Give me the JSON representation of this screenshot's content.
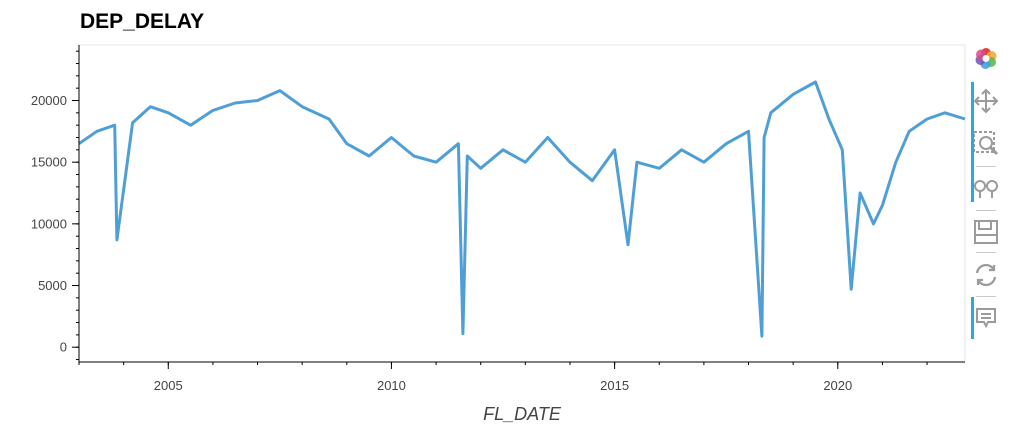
{
  "chart_data": {
    "type": "line",
    "title": "DEP_DELAY",
    "xlabel": "FL_DATE",
    "ylabel": "",
    "xlim": [
      2003.0,
      2022.85
    ],
    "ylim": [
      -1200,
      24500
    ],
    "xticks": [
      2005,
      2010,
      2015,
      2020
    ],
    "yticks": [
      0,
      5000,
      10000,
      15000,
      20000
    ],
    "line_color": "#4f9fd6",
    "grid": false,
    "series": [
      {
        "values_note": "",
        "x": [
          2003.0,
          2003.4,
          2003.8,
          2003.85,
          2004.2,
          2004.6,
          2005.0,
          2005.5,
          2006.0,
          2006.5,
          2007.0,
          2007.5,
          2008.0,
          2008.6,
          2009.0,
          2009.5,
          2010.0,
          2010.5,
          2011.0,
          2011.5,
          2011.6,
          2011.7,
          2012.0,
          2012.5,
          2013.0,
          2013.5,
          2014.0,
          2014.5,
          2015.0,
          2015.3,
          2015.5,
          2016.0,
          2016.5,
          2017.0,
          2017.5,
          2018.0,
          2018.3,
          2018.35,
          2018.5,
          2019.0,
          2019.5,
          2019.8,
          2020.1,
          2020.3,
          2020.5,
          2020.8,
          2021.0,
          2021.3,
          2021.6,
          2022.0,
          2022.4,
          2022.85
        ],
        "y": [
          16500,
          17500,
          18000,
          8700,
          18200,
          19500,
          19000,
          18000,
          19200,
          19800,
          20000,
          20800,
          19500,
          18500,
          16500,
          15500,
          17000,
          15500,
          15000,
          16500,
          1100,
          15500,
          14500,
          16000,
          15000,
          17000,
          15000,
          13500,
          16000,
          8300,
          15000,
          14500,
          16000,
          15000,
          16500,
          17500,
          900,
          17000,
          19000,
          20500,
          21500,
          18500,
          16000,
          4700,
          12500,
          10000,
          11500,
          15000,
          17500,
          18500,
          19000,
          18500
        ]
      }
    ]
  },
  "toolbar": {
    "items": [
      {
        "name": "bokeh-logo-icon"
      },
      {
        "name": "pan-icon"
      },
      {
        "name": "box-zoom-icon"
      },
      {
        "name": "wheel-zoom-icon"
      },
      {
        "name": "save-icon"
      },
      {
        "name": "reset-icon"
      },
      {
        "name": "hover-icon"
      }
    ]
  }
}
